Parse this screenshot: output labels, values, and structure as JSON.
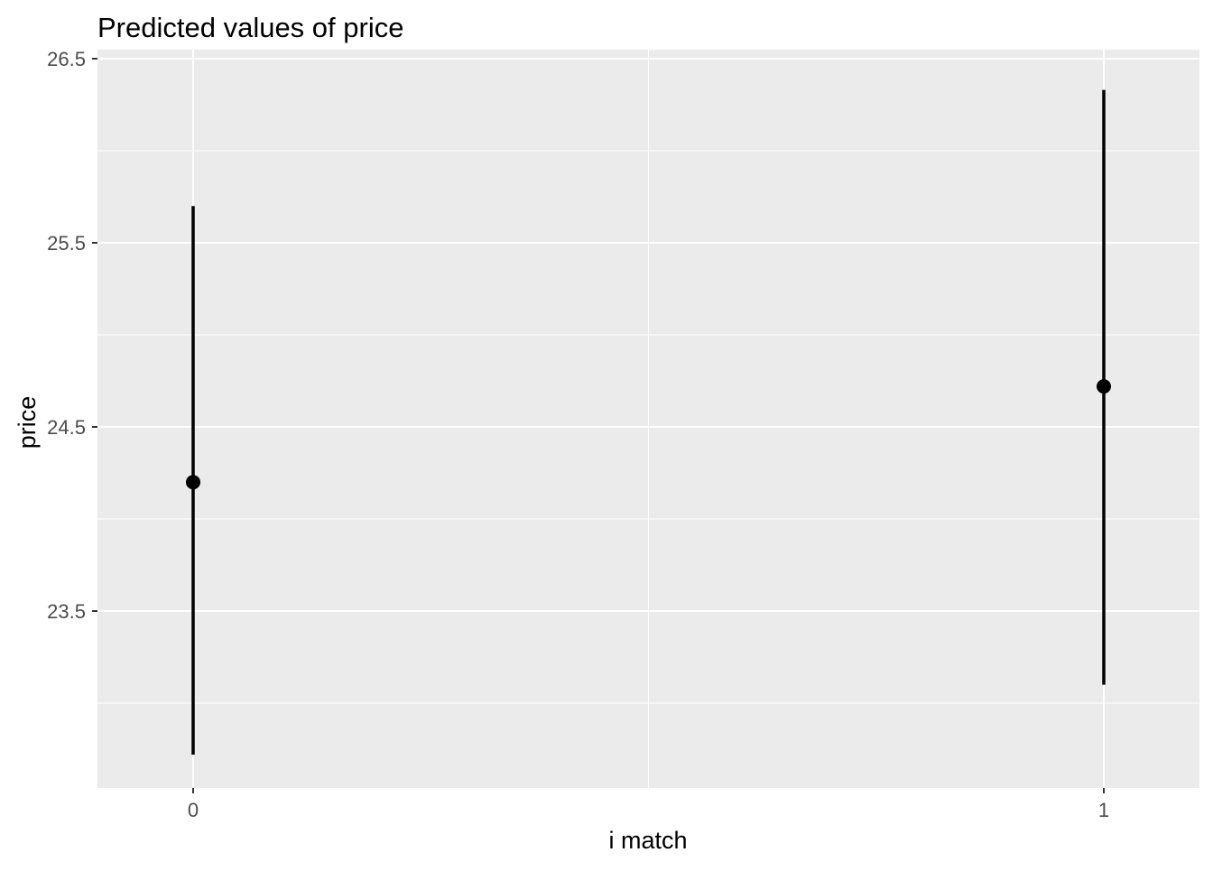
{
  "chart_data": {
    "type": "scatter",
    "title": "Predicted values of price",
    "xlabel": "i match",
    "ylabel": "price",
    "categories": [
      "0",
      "1"
    ],
    "points": [
      {
        "x": "0",
        "y": 24.2,
        "ci_low": 22.72,
        "ci_high": 25.7
      },
      {
        "x": "1",
        "y": 24.72,
        "ci_low": 23.1,
        "ci_high": 26.33
      }
    ],
    "y_ticks": [
      "23.5",
      "24.5",
      "25.5",
      "26.5"
    ],
    "ylim": [
      22.53,
      26.5
    ],
    "grid": true,
    "legend": "none",
    "colors": {
      "panel": "#ebebeb",
      "grid": "#ffffff",
      "marks": "#000000",
      "tick_text": "#4d4d4d",
      "tick_mark": "#333333"
    }
  }
}
